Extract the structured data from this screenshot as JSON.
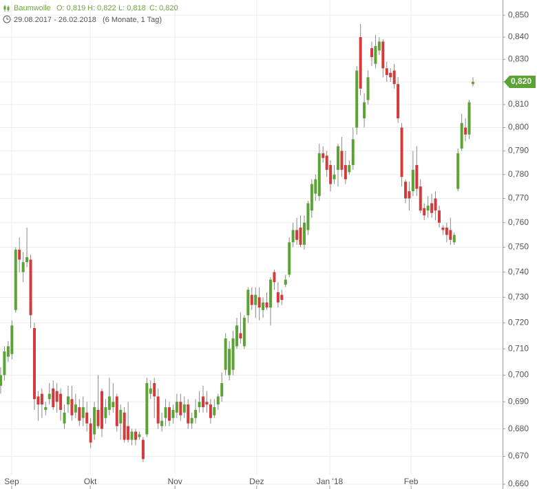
{
  "chart_data": {
    "type": "candlestick",
    "log_scale": true,
    "grid": true,
    "up_color": "#5ba335",
    "down_color": "#d23b3b",
    "header_color": "#6aa83a",
    "ohlc_labels": [
      "O: 0,819",
      "H: 0,822",
      "L: 0,818",
      "C: 0,820"
    ],
    "period": "29.08.2017 - 26.02.2018",
    "period_note": "(6 Monate, 1 Tag)",
    "last_price": {
      "value": 0.82,
      "label": "0,820"
    },
    "xlim": [
      -0.18,
      133.9
    ],
    "xticks": [
      {
        "value": 2.94,
        "label": "Sep"
      },
      {
        "value": 23.9,
        "label": "Okt"
      },
      {
        "value": 46.5,
        "label": "Nov"
      },
      {
        "value": 68.3,
        "label": "Dez"
      },
      {
        "value": 87.8,
        "label": "Jan '18"
      },
      {
        "value": 109.5,
        "label": "Feb"
      }
    ],
    "ylim": [
      0.6583,
      0.857
    ],
    "yticks": [
      {
        "value": 0.66,
        "label": "0,660"
      },
      {
        "value": 0.67,
        "label": "0,670"
      },
      {
        "value": 0.68,
        "label": "0,680"
      },
      {
        "value": 0.69,
        "label": "0,690"
      },
      {
        "value": 0.7,
        "label": "0,700"
      },
      {
        "value": 0.71,
        "label": "0,710"
      },
      {
        "value": 0.72,
        "label": "0,720"
      },
      {
        "value": 0.73,
        "label": "0,730"
      },
      {
        "value": 0.74,
        "label": "0,740"
      },
      {
        "value": 0.75,
        "label": "0,750"
      },
      {
        "value": 0.76,
        "label": "0,760"
      },
      {
        "value": 0.77,
        "label": "0,770"
      },
      {
        "value": 0.78,
        "label": "0,780"
      },
      {
        "value": 0.79,
        "label": "0,790"
      },
      {
        "value": 0.8,
        "label": "0,800"
      },
      {
        "value": 0.81,
        "label": "0,810"
      },
      {
        "value": 0.82,
        "label": "0,820"
      },
      {
        "value": 0.83,
        "label": "0,830"
      },
      {
        "value": 0.84,
        "label": "0,840"
      },
      {
        "value": 0.85,
        "label": "0,850"
      }
    ],
    "series": [
      {
        "name": "Baumwolle",
        "open": [
          0.696,
          0.7,
          0.707,
          0.708,
          0.725,
          0.749,
          0.74,
          0.744,
          0.745,
          0.718,
          0.692,
          0.693,
          0.687,
          0.691,
          0.695,
          0.694,
          0.693,
          0.682,
          0.689,
          0.691,
          0.686,
          0.688,
          0.684,
          0.686,
          0.682,
          0.678,
          0.687,
          0.694,
          0.684,
          0.687,
          0.688,
          0.692,
          0.682,
          0.686,
          0.681,
          0.676,
          0.679,
          0.677,
          0.676,
          0.678,
          0.693,
          0.697,
          0.692,
          0.681,
          0.684,
          0.688,
          0.684,
          0.686,
          0.69,
          0.686,
          0.689,
          0.682,
          0.684,
          0.688,
          0.692,
          0.69,
          0.689,
          0.685,
          0.689,
          0.692,
          0.702,
          0.7,
          0.702,
          0.711,
          0.716,
          0.711,
          0.723,
          0.731,
          0.727,
          0.73,
          0.725,
          0.728,
          0.726,
          0.74,
          0.732,
          0.731,
          0.735,
          0.739,
          0.752,
          0.757,
          0.758,
          0.751,
          0.757,
          0.765,
          0.772,
          0.771,
          0.789,
          0.788,
          0.784,
          0.778,
          0.782,
          0.79,
          0.784,
          0.781,
          0.784,
          0.8,
          0.84,
          0.804,
          0.812,
          0.835,
          0.828,
          0.834,
          0.838,
          0.826,
          0.824,
          0.825,
          0.819,
          0.8,
          0.777,
          0.773,
          0.773,
          0.784,
          0.775,
          0.766,
          0.765,
          0.768,
          0.77,
          0.765,
          0.758,
          0.758,
          0.757,
          0.752,
          0.774,
          0.791,
          0.8,
          0.797,
          0.819
        ],
        "high": [
          0.703,
          0.711,
          0.713,
          0.721,
          0.75,
          0.754,
          0.748,
          0.758,
          0.747,
          0.72,
          0.694,
          0.695,
          0.69,
          0.697,
          0.698,
          0.697,
          0.695,
          0.689,
          0.696,
          0.696,
          0.693,
          0.691,
          0.692,
          0.69,
          0.684,
          0.69,
          0.7,
          0.695,
          0.691,
          0.699,
          0.697,
          0.693,
          0.689,
          0.688,
          0.69,
          0.68,
          0.68,
          0.679,
          0.677,
          0.699,
          0.698,
          0.699,
          0.695,
          0.686,
          0.691,
          0.69,
          0.689,
          0.693,
          0.693,
          0.692,
          0.691,
          0.686,
          0.691,
          0.694,
          0.696,
          0.694,
          0.691,
          0.691,
          0.693,
          0.701,
          0.716,
          0.713,
          0.717,
          0.722,
          0.724,
          0.723,
          0.734,
          0.734,
          0.734,
          0.734,
          0.73,
          0.732,
          0.738,
          0.741,
          0.736,
          0.733,
          0.739,
          0.754,
          0.76,
          0.762,
          0.763,
          0.763,
          0.769,
          0.778,
          0.78,
          0.793,
          0.792,
          0.79,
          0.786,
          0.784,
          0.793,
          0.796,
          0.79,
          0.786,
          0.8,
          0.827,
          0.846,
          0.815,
          0.825,
          0.838,
          0.841,
          0.84,
          0.839,
          0.829,
          0.826,
          0.828,
          0.822,
          0.802,
          0.778,
          0.777,
          0.79,
          0.792,
          0.778,
          0.768,
          0.771,
          0.772,
          0.773,
          0.767,
          0.759,
          0.76,
          0.762,
          0.756,
          0.791,
          0.806,
          0.804,
          0.812,
          0.822
        ],
        "low": [
          0.693,
          0.698,
          0.705,
          0.706,
          0.724,
          0.74,
          0.736,
          0.742,
          0.718,
          0.687,
          0.683,
          0.684,
          0.685,
          0.689,
          0.687,
          0.686,
          0.683,
          0.68,
          0.686,
          0.683,
          0.684,
          0.681,
          0.681,
          0.679,
          0.673,
          0.676,
          0.68,
          0.677,
          0.682,
          0.685,
          0.686,
          0.679,
          0.676,
          0.675,
          0.675,
          0.674,
          0.674,
          0.676,
          0.668,
          0.677,
          0.691,
          0.684,
          0.68,
          0.679,
          0.681,
          0.681,
          0.682,
          0.684,
          0.683,
          0.684,
          0.68,
          0.68,
          0.682,
          0.686,
          0.686,
          0.686,
          0.682,
          0.684,
          0.687,
          0.69,
          0.7,
          0.698,
          0.7,
          0.71,
          0.712,
          0.71,
          0.72,
          0.725,
          0.722,
          0.721,
          0.722,
          0.725,
          0.719,
          0.733,
          0.726,
          0.727,
          0.734,
          0.738,
          0.75,
          0.751,
          0.75,
          0.749,
          0.755,
          0.762,
          0.769,
          0.769,
          0.785,
          0.779,
          0.773,
          0.776,
          0.775,
          0.779,
          0.776,
          0.78,
          0.782,
          0.797,
          0.814,
          0.8,
          0.81,
          0.827,
          0.826,
          0.832,
          0.822,
          0.82,
          0.82,
          0.817,
          0.802,
          0.775,
          0.768,
          0.765,
          0.771,
          0.771,
          0.764,
          0.761,
          0.762,
          0.762,
          0.761,
          0.758,
          0.755,
          0.752,
          0.751,
          0.751,
          0.773,
          0.79,
          0.794,
          0.795,
          0.818
        ],
        "close": [
          0.7,
          0.709,
          0.711,
          0.719,
          0.749,
          0.745,
          0.744,
          0.746,
          0.723,
          0.691,
          0.689,
          0.689,
          0.688,
          0.693,
          0.688,
          0.69,
          0.687,
          0.686,
          0.692,
          0.685,
          0.689,
          0.683,
          0.688,
          0.682,
          0.675,
          0.688,
          0.681,
          0.68,
          0.688,
          0.692,
          0.69,
          0.681,
          0.687,
          0.676,
          0.676,
          0.679,
          0.676,
          0.678,
          0.669,
          0.697,
          0.695,
          0.692,
          0.682,
          0.683,
          0.688,
          0.683,
          0.687,
          0.69,
          0.685,
          0.689,
          0.682,
          0.684,
          0.687,
          0.69,
          0.688,
          0.689,
          0.684,
          0.688,
          0.692,
          0.697,
          0.714,
          0.71,
          0.714,
          0.719,
          0.714,
          0.722,
          0.733,
          0.727,
          0.731,
          0.726,
          0.728,
          0.726,
          0.737,
          0.736,
          0.728,
          0.729,
          0.737,
          0.752,
          0.757,
          0.753,
          0.751,
          0.76,
          0.768,
          0.776,
          0.778,
          0.789,
          0.787,
          0.782,
          0.776,
          0.78,
          0.792,
          0.782,
          0.778,
          0.784,
          0.795,
          0.825,
          0.817,
          0.811,
          0.822,
          0.831,
          0.836,
          0.838,
          0.826,
          0.823,
          0.822,
          0.819,
          0.804,
          0.779,
          0.77,
          0.77,
          0.782,
          0.774,
          0.765,
          0.763,
          0.767,
          0.764,
          0.765,
          0.76,
          0.757,
          0.755,
          0.753,
          0.755,
          0.789,
          0.802,
          0.797,
          0.811,
          0.82
        ]
      }
    ]
  }
}
